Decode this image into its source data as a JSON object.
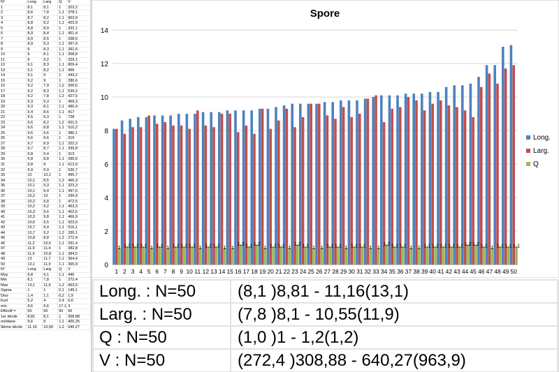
{
  "sheet": {
    "header": [
      "N°",
      "Long.",
      "Larg",
      "Q",
      "V"
    ],
    "rows": [
      [
        "1",
        "8,1",
        "8,1",
        "1",
        "323,2"
      ],
      [
        "2",
        "8,6",
        "7,8",
        "1,1",
        "378,1"
      ],
      [
        "3",
        "8,7",
        "8,2",
        "1,1",
        "963,9"
      ],
      [
        "4",
        "8,8",
        "8,2",
        "1,1",
        "423,9"
      ],
      [
        "5",
        "8,8",
        "8,9",
        "1",
        "332,1"
      ],
      [
        "6",
        "8,9",
        "8,4",
        "1,1",
        "451,4"
      ],
      [
        "7",
        "8,9",
        "8,5",
        "1",
        "338,6"
      ],
      [
        "8",
        "8,9",
        "8,3",
        "1,1",
        "397,9"
      ],
      [
        "9",
        "9",
        "8,3",
        "1,1",
        "391,6"
      ],
      [
        "10",
        "9",
        "8,1",
        "1,1",
        "308,8"
      ],
      [
        "11",
        "9",
        "9,2",
        "1",
        "329,1"
      ],
      [
        "12",
        "9,1",
        "8,3",
        "1,1",
        "809,4"
      ],
      [
        "13",
        "9,1",
        "8,2",
        "1,1",
        "456"
      ],
      [
        "14",
        "9,1",
        "9",
        "1",
        "443,2"
      ],
      [
        "15",
        "9,2",
        "9",
        "1",
        "280,6"
      ],
      [
        "16",
        "9,2",
        "7,9",
        "1,2",
        "309,6"
      ],
      [
        "17",
        "9,2",
        "8,3",
        "1,1",
        "539,2"
      ],
      [
        "18",
        "9,2",
        "7,8",
        "1,2",
        "427,5"
      ],
      [
        "19",
        "9,3",
        "9,3",
        "1",
        "459,3"
      ],
      [
        "20",
        "9,3",
        "8,1",
        "1,1",
        "496,4"
      ],
      [
        "21",
        "9,4",
        "8,6",
        "1,1",
        "417"
      ],
      [
        "22",
        "9,5",
        "9,3",
        "1",
        "728"
      ],
      [
        "23",
        "9,6",
        "8,2",
        "1,2",
        "651,5"
      ],
      [
        "24",
        "9,6",
        "8,8",
        "1,1",
        "510,2"
      ],
      [
        "25",
        "9,6",
        "9,6",
        "1",
        "386,1"
      ],
      [
        "26",
        "9,6",
        "9,6",
        "1",
        "319"
      ],
      [
        "27",
        "9,7",
        "8,9",
        "1,1",
        "322,3"
      ],
      [
        "28",
        "9,7",
        "8,7",
        "1,1",
        "339,8"
      ],
      [
        "29",
        "9,8",
        "9,4",
        "1",
        "313"
      ],
      [
        "30",
        "9,8",
        "8,8",
        "1,1",
        "396,6"
      ],
      [
        "31",
        "9,8",
        "9",
        "1,1",
        "613,9"
      ],
      [
        "32",
        "9,9",
        "9,9",
        "1",
        "536,7"
      ],
      [
        "33",
        "10",
        "10,1",
        "1",
        "495,7"
      ],
      [
        "34",
        "10,1",
        "8,5",
        "1,2",
        "466,3"
      ],
      [
        "35",
        "10,1",
        "9,3",
        "1,1",
        "323,3"
      ],
      [
        "36",
        "10,1",
        "9,4",
        "1,1",
        "497,6"
      ],
      [
        "37",
        "10,2",
        "10",
        "1",
        "299,9"
      ],
      [
        "38",
        "10,2",
        "9,8",
        "1",
        "472,5"
      ],
      [
        "39",
        "10,2",
        "9,2",
        "1,1",
        "463,3"
      ],
      [
        "40",
        "10,3",
        "9,6",
        "1,1",
        "402,6"
      ],
      [
        "41",
        "10,3",
        "9,8",
        "1,1",
        "466,9"
      ],
      [
        "42",
        "10,6",
        "9,5",
        "1,1",
        "923,6"
      ],
      [
        "43",
        "10,7",
        "9,4",
        "1,1",
        "516,1"
      ],
      [
        "44",
        "10,7",
        "9,2",
        "1,2",
        "330,1"
      ],
      [
        "45",
        "10,8",
        "8,8",
        "1,2",
        "272,4"
      ],
      [
        "46",
        "11,2",
        "10,6",
        "1,1",
        "291,4"
      ],
      [
        "47",
        "11,9",
        "11,4",
        "1",
        "382,8"
      ],
      [
        "48",
        "11,9",
        "10,8",
        "1,1",
        "384,5"
      ],
      [
        "49",
        "13",
        "11,7",
        "1,1",
        "364,4"
      ],
      [
        "50",
        "13,1",
        "11,9",
        "1,1",
        "365,9"
      ],
      [
        "N°",
        "Long",
        "Larg",
        "Q",
        "V"
      ],
      [
        "Moy",
        "9,8",
        "9,1",
        "1,1",
        "440"
      ],
      [
        "Min",
        "8,1",
        "7,8",
        "1",
        "272,4"
      ],
      [
        "Max",
        "13,1",
        "11,9",
        "1,2",
        "963,9"
      ],
      [
        "Sigma",
        "1",
        "1",
        "0,1",
        "149,1"
      ],
      [
        "Diss",
        "1,4",
        "1,1",
        "0,2",
        "1,9"
      ],
      [
        "Kurt",
        "5,2",
        "4",
        "2,4",
        "6,6"
      ],
      [
        "m/s",
        "9,6",
        "9,6",
        "17,1",
        "3"
      ],
      [
        "Effectif =",
        "50",
        "50",
        "50",
        "50"
      ],
      [
        "1er décile",
        "8,81",
        "8,1",
        "1",
        "308,88"
      ],
      [
        "médiane",
        "9,6",
        "9",
        "1,1",
        "400,25"
      ],
      [
        "9ième décile",
        "11,16",
        "10,55",
        "1,2",
        "640,27"
      ]
    ]
  },
  "chart_data": {
    "type": "bar",
    "title": "Spore",
    "ylim": [
      0,
      14
    ],
    "yticks": [
      0,
      2,
      4,
      6,
      8,
      10,
      12,
      14
    ],
    "grid": true,
    "legend_position": "right",
    "categories": [
      "1",
      "2",
      "3",
      "4",
      "5",
      "6",
      "7",
      "8",
      "9",
      "10",
      "11",
      "12",
      "13",
      "14",
      "15",
      "16",
      "17",
      "18",
      "19",
      "20",
      "21",
      "22",
      "23",
      "24",
      "25",
      "26",
      "27",
      "28",
      "29",
      "30",
      "31",
      "32",
      "33",
      "34",
      "35",
      "36",
      "37",
      "38",
      "39",
      "40",
      "41",
      "42",
      "43",
      "44",
      "45",
      "46",
      "47",
      "48",
      "49",
      "50"
    ],
    "series": [
      {
        "name": "Long.",
        "color": "#4f81bd",
        "values": [
          8.1,
          8.6,
          8.7,
          8.8,
          8.8,
          8.9,
          8.9,
          8.9,
          9,
          9,
          9,
          9.1,
          9.1,
          9.1,
          9.2,
          9.2,
          9.2,
          9.2,
          9.3,
          9.3,
          9.4,
          9.5,
          9.6,
          9.6,
          9.6,
          9.6,
          9.7,
          9.7,
          9.8,
          9.8,
          9.8,
          9.9,
          10,
          10.1,
          10.1,
          10.1,
          10.2,
          10.2,
          10.2,
          10.3,
          10.3,
          10.6,
          10.7,
          10.7,
          10.8,
          11.2,
          11.9,
          11.9,
          13,
          13.1
        ]
      },
      {
        "name": "Larg.",
        "color": "#c0504d",
        "values": [
          8.1,
          7.8,
          8.2,
          8.2,
          8.9,
          8.4,
          8.5,
          8.3,
          8.3,
          8.1,
          9.2,
          8.3,
          8.2,
          9,
          9,
          7.9,
          8.3,
          7.8,
          9.3,
          8.1,
          8.6,
          9.3,
          8.2,
          8.8,
          9.6,
          9.6,
          8.9,
          8.7,
          9.4,
          8.8,
          9,
          9.9,
          10.1,
          8.5,
          9.3,
          9.4,
          10,
          9.8,
          9.2,
          9.6,
          9.8,
          9.5,
          9.4,
          9.2,
          8.8,
          10.6,
          11.4,
          10.8,
          11.7,
          11.9
        ]
      },
      {
        "name": "Q",
        "color": "#9bbb59",
        "values": [
          1,
          1.1,
          1.1,
          1.1,
          1,
          1.1,
          1,
          1.1,
          1.1,
          1.1,
          1,
          1.1,
          1.1,
          1,
          1,
          1.2,
          1.1,
          1.2,
          1,
          1.1,
          1.1,
          1,
          1.2,
          1.1,
          1,
          1,
          1.1,
          1.1,
          1,
          1.1,
          1.1,
          1,
          1,
          1.2,
          1.1,
          1.1,
          1,
          1,
          1.1,
          1.1,
          1.1,
          1.1,
          1.1,
          1.2,
          1.2,
          1.1,
          1,
          1.1,
          1.1,
          1.1
        ]
      }
    ]
  },
  "summary": [
    {
      "label": "Long. : N=50",
      "value": "(8,1 )8,81 - 11,16(13,1)"
    },
    {
      "label": "Larg. : N=50",
      "value": "(7,8 )8,1 - 10,55(11,9)"
    },
    {
      "label": "Q : N=50",
      "value": "(1,0 )1 - 1,2(1,2)"
    },
    {
      "label": "V : N=50",
      "value": "(272,4 )308,88 - 640,27(963,9)"
    }
  ]
}
